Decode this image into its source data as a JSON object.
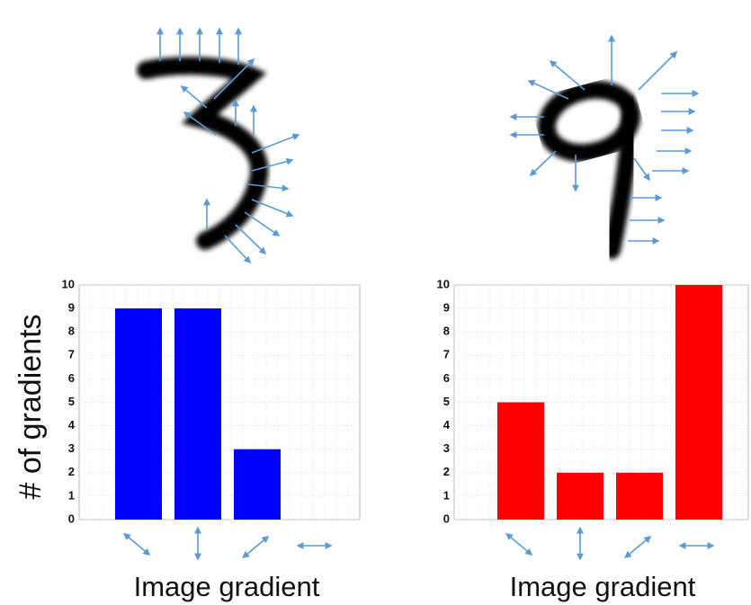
{
  "chart_data": [
    {
      "type": "bar",
      "y_label": "# of gradients",
      "x_label": "Image gradient",
      "categories": [
        null,
        null,
        null,
        null
      ],
      "values": [
        9,
        9,
        3,
        0
      ],
      "color": "#0000ff",
      "ylim": [
        0,
        10
      ],
      "yticks": [
        0,
        1,
        2,
        3,
        4,
        5,
        6,
        7,
        8,
        9,
        10
      ],
      "grid": true
    },
    {
      "type": "bar",
      "x_label": "Image gradient",
      "categories": [
        null,
        null,
        null,
        null
      ],
      "values": [
        5,
        2,
        2,
        10
      ],
      "color": "#ff0000",
      "ylim": [
        0,
        10
      ],
      "yticks": [
        0,
        1,
        2,
        3,
        4,
        5,
        6,
        7,
        8,
        9,
        10
      ],
      "grid": true
    }
  ]
}
